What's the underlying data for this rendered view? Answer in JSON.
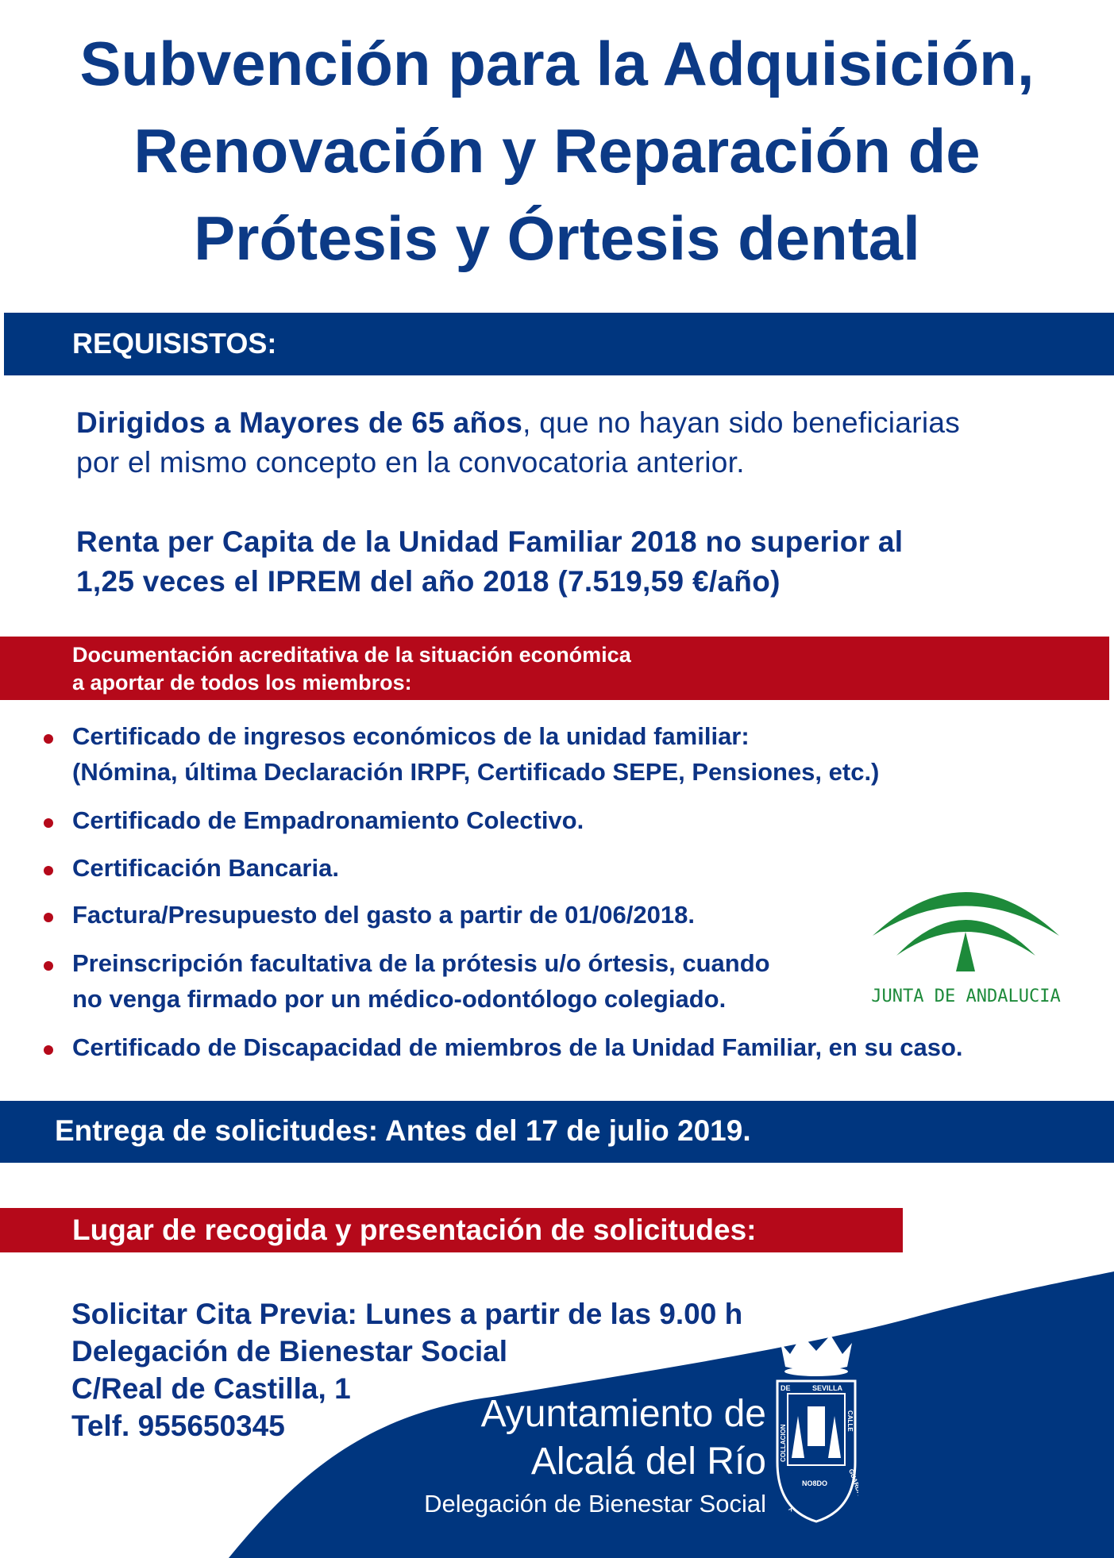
{
  "title": {
    "lines": [
      "Subvención para la Adquisición,",
      "Renovación y Reparación de",
      "Prótesis y Órtesis dental"
    ]
  },
  "requisitos": {
    "heading": "REQUISISTOS:",
    "p1_bold": "Dirigidos a Mayores de 65 años",
    "p1_rest": ", que no hayan sido beneficiarias",
    "p1_line2": "por el mismo concepto en la convocatoria anterior.",
    "p2_line1": "Renta  per Capita de la Unidad Familiar 2018 no superior al",
    "p2_line2": "1,25  veces el IPREM del año 2018 (7.519,59 €/año)"
  },
  "documentacion": {
    "heading_line1": "Documentación acreditativa de la situación económica",
    "heading_line2": "a aportar de todos los miembros:",
    "items": [
      {
        "line1": "Certificado de ingresos económicos de la unidad familiar:",
        "line2": "(Nómina, última Declaración IRPF, Certificado SEPE, Pensiones, etc.)"
      },
      {
        "line1": "Certificado de Empadronamiento Colectivo."
      },
      {
        "line1": "Certificación Bancaria."
      },
      {
        "line1": "Factura/Presupuesto del gasto a partir de 01/06/2018."
      },
      {
        "line1": "Preinscripción facultativa de la prótesis u/o órtesis, cuando",
        "line2": "no venga firmado por un médico-odontólogo colegiado."
      },
      {
        "line1": "Certificado de Discapacidad de miembros de la Unidad Familiar, en su caso."
      }
    ]
  },
  "junta_logo": {
    "text": "JUNTA DE ANDALUCIA",
    "color": "#1d8a3a"
  },
  "entrega": {
    "text": "Entrega de solicitudes: Antes del 17 de julio 2019."
  },
  "lugar": {
    "heading": "Lugar de recogida y presentación de solicitudes:"
  },
  "contacto": {
    "lines": [
      "Solicitar Cita Previa: Lunes a partir de las 9.00 h",
      "Delegación de Bienestar Social",
      "C/Real de Castilla, 1",
      "Telf. 955650345"
    ]
  },
  "ayuntamiento": {
    "line1": "Ayuntamiento de",
    "line2": "Alcalá del Río",
    "line3": "Delegación de Bienestar Social",
    "crest_text": {
      "top_left": "DE",
      "top_right": "SEVILLA",
      "left": "COLLACION",
      "right": "CALLE",
      "bottom_right": "GUARDA",
      "bottom_left": "Y",
      "motto": "NO8DO"
    }
  },
  "colors": {
    "primary_blue": "#00367f",
    "accent_red": "#b5091a",
    "text_blue": "#0c3384"
  }
}
